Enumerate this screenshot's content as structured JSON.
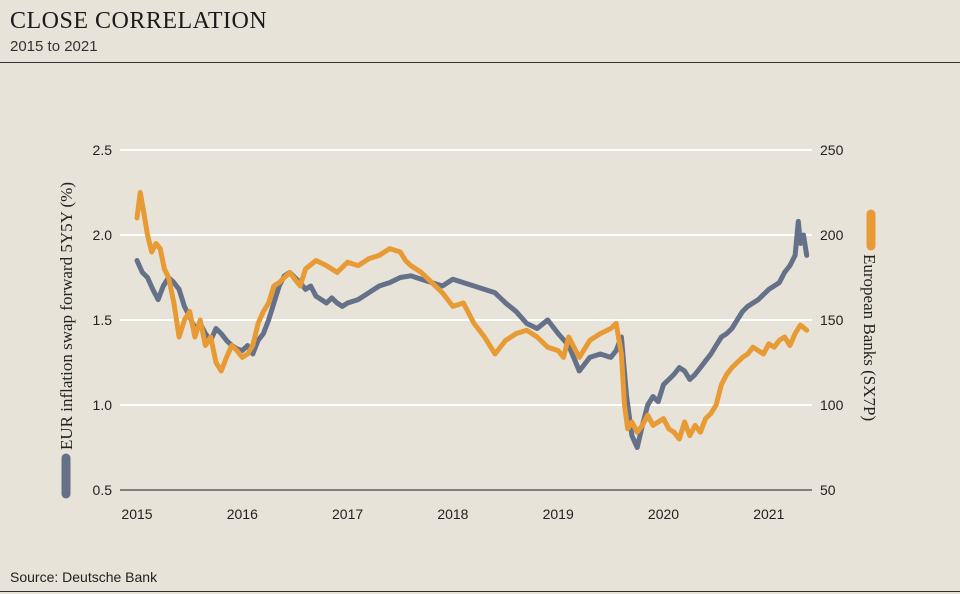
{
  "header": {
    "title": "CLOSE CORRELATION",
    "subtitle": "2015 to 2021"
  },
  "footer": {
    "source": "Source: Deutsche Bank"
  },
  "chart_data": {
    "type": "line",
    "xlabel": "",
    "x_ticks": [
      "2015",
      "2016",
      "2017",
      "2018",
      "2019",
      "2020",
      "2021"
    ],
    "xlim": [
      2015.0,
      2021.4
    ],
    "y_left": {
      "label": "EUR inflation swap forward 5Y5Y (%)",
      "ticks": [
        "0.5",
        "1.0",
        "1.5",
        "2.0",
        "2.5"
      ],
      "ylim": [
        0.5,
        2.5
      ]
    },
    "y_right": {
      "label": "European Banks (SX7P)",
      "ticks": [
        "50",
        "100",
        "150",
        "200",
        "250"
      ],
      "ylim": [
        50,
        250
      ]
    },
    "grid": true,
    "legend": "axis labels with colored markers",
    "colors": {
      "inflation": "#647189",
      "banks": "#e89a35"
    },
    "series": [
      {
        "name": "EUR inflation swap forward 5Y5Y (%)",
        "axis": "left",
        "color": "#647189",
        "x": [
          2015.0,
          2015.05,
          2015.1,
          2015.15,
          2015.2,
          2015.25,
          2015.3,
          2015.35,
          2015.4,
          2015.45,
          2015.5,
          2015.55,
          2015.6,
          2015.65,
          2015.7,
          2015.75,
          2015.8,
          2015.85,
          2015.9,
          2015.95,
          2016.0,
          2016.05,
          2016.1,
          2016.15,
          2016.2,
          2016.25,
          2016.3,
          2016.35,
          2016.4,
          2016.45,
          2016.5,
          2016.55,
          2016.6,
          2016.65,
          2016.7,
          2016.75,
          2016.8,
          2016.85,
          2016.9,
          2016.95,
          2017.0,
          2017.1,
          2017.2,
          2017.3,
          2017.4,
          2017.5,
          2017.6,
          2017.7,
          2017.8,
          2017.9,
          2018.0,
          2018.1,
          2018.2,
          2018.3,
          2018.4,
          2018.5,
          2018.6,
          2018.7,
          2018.8,
          2018.9,
          2019.0,
          2019.1,
          2019.2,
          2019.3,
          2019.4,
          2019.5,
          2019.55,
          2019.6,
          2019.65,
          2019.7,
          2019.75,
          2019.8,
          2019.85,
          2019.9,
          2019.95,
          2020.0,
          2020.05,
          2020.1,
          2020.15,
          2020.2,
          2020.25,
          2020.3,
          2020.35,
          2020.4,
          2020.45,
          2020.5,
          2020.55,
          2020.6,
          2020.65,
          2020.7,
          2020.75,
          2020.8,
          2020.85,
          2020.9,
          2020.95,
          2021.0,
          2021.05,
          2021.1,
          2021.15,
          2021.2,
          2021.25,
          2021.28,
          2021.3,
          2021.33,
          2021.36
        ],
        "values": [
          1.85,
          1.78,
          1.75,
          1.68,
          1.62,
          1.7,
          1.75,
          1.72,
          1.68,
          1.58,
          1.52,
          1.45,
          1.48,
          1.42,
          1.38,
          1.45,
          1.42,
          1.38,
          1.35,
          1.33,
          1.32,
          1.35,
          1.3,
          1.38,
          1.42,
          1.5,
          1.6,
          1.7,
          1.76,
          1.78,
          1.75,
          1.72,
          1.68,
          1.7,
          1.64,
          1.62,
          1.6,
          1.63,
          1.6,
          1.58,
          1.6,
          1.62,
          1.66,
          1.7,
          1.72,
          1.75,
          1.76,
          1.74,
          1.72,
          1.7,
          1.74,
          1.72,
          1.7,
          1.68,
          1.66,
          1.6,
          1.55,
          1.48,
          1.45,
          1.5,
          1.42,
          1.35,
          1.2,
          1.28,
          1.3,
          1.28,
          1.32,
          1.4,
          1.05,
          0.82,
          0.75,
          0.88,
          1.0,
          1.05,
          1.02,
          1.12,
          1.15,
          1.18,
          1.22,
          1.2,
          1.15,
          1.18,
          1.22,
          1.26,
          1.3,
          1.35,
          1.4,
          1.42,
          1.45,
          1.5,
          1.55,
          1.58,
          1.6,
          1.62,
          1.65,
          1.68,
          1.7,
          1.72,
          1.78,
          1.82,
          1.88,
          2.08,
          1.95,
          2.0,
          1.88
        ]
      },
      {
        "name": "European Banks (SX7P)",
        "axis": "right",
        "color": "#e89a35",
        "x": [
          2015.0,
          2015.03,
          2015.06,
          2015.1,
          2015.14,
          2015.18,
          2015.22,
          2015.26,
          2015.3,
          2015.35,
          2015.4,
          2015.45,
          2015.5,
          2015.55,
          2015.6,
          2015.65,
          2015.7,
          2015.75,
          2015.8,
          2015.85,
          2015.9,
          2015.95,
          2016.0,
          2016.05,
          2016.1,
          2016.15,
          2016.2,
          2016.25,
          2016.3,
          2016.35,
          2016.4,
          2016.45,
          2016.5,
          2016.55,
          2016.6,
          2016.7,
          2016.8,
          2016.9,
          2017.0,
          2017.1,
          2017.2,
          2017.3,
          2017.4,
          2017.5,
          2017.55,
          2017.6,
          2017.7,
          2017.8,
          2017.9,
          2018.0,
          2018.1,
          2018.2,
          2018.3,
          2018.35,
          2018.4,
          2018.5,
          2018.6,
          2018.7,
          2018.8,
          2018.9,
          2019.0,
          2019.05,
          2019.1,
          2019.2,
          2019.3,
          2019.4,
          2019.5,
          2019.55,
          2019.6,
          2019.63,
          2019.66,
          2019.7,
          2019.75,
          2019.8,
          2019.85,
          2019.9,
          2019.95,
          2020.0,
          2020.05,
          2020.1,
          2020.15,
          2020.2,
          2020.25,
          2020.3,
          2020.35,
          2020.4,
          2020.45,
          2020.5,
          2020.55,
          2020.6,
          2020.65,
          2020.7,
          2020.75,
          2020.8,
          2020.85,
          2020.9,
          2020.95,
          2021.0,
          2021.05,
          2021.1,
          2021.15,
          2021.2,
          2021.25,
          2021.3,
          2021.36
        ],
        "values": [
          210,
          225,
          215,
          200,
          190,
          195,
          192,
          180,
          175,
          160,
          140,
          150,
          155,
          140,
          150,
          135,
          140,
          125,
          120,
          128,
          135,
          132,
          128,
          130,
          135,
          148,
          155,
          160,
          170,
          172,
          175,
          178,
          174,
          170,
          180,
          185,
          182,
          178,
          184,
          182,
          186,
          188,
          192,
          190,
          185,
          182,
          178,
          172,
          166,
          158,
          160,
          148,
          140,
          135,
          130,
          138,
          142,
          144,
          140,
          134,
          132,
          128,
          140,
          128,
          138,
          142,
          145,
          148,
          130,
          100,
          86,
          90,
          84,
          88,
          94,
          88,
          90,
          92,
          86,
          84,
          80,
          90,
          82,
          88,
          84,
          92,
          95,
          100,
          112,
          118,
          122,
          125,
          128,
          130,
          134,
          132,
          130,
          136,
          134,
          138,
          140,
          135,
          142,
          147,
          144
        ]
      }
    ]
  }
}
